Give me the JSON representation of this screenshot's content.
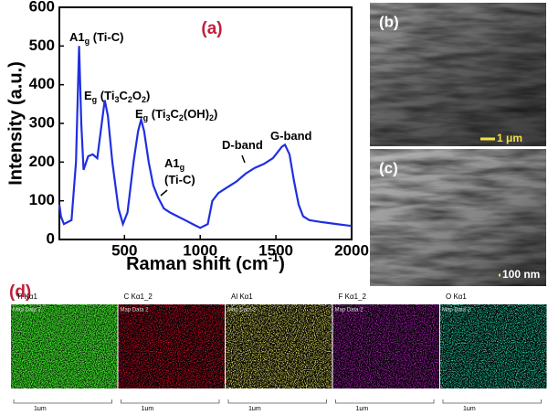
{
  "chart_data": {
    "type": "line",
    "panel": "(a)",
    "xlabel": [
      "Raman shift (cm",
      "-1",
      ")"
    ],
    "ylabel": "Intensity (a.u.)",
    "xlim": [
      70,
      2000
    ],
    "ylim": [
      0,
      600
    ],
    "xticks": [
      500,
      1000,
      1500,
      2000
    ],
    "yticks": [
      0,
      100,
      200,
      300,
      400,
      500,
      600
    ],
    "series": [
      {
        "color": "#1f2fe0",
        "x": [
          70,
          80,
          100,
          150,
          180,
          200,
          215,
          230,
          260,
          290,
          320,
          350,
          370,
          390,
          420,
          460,
          490,
          520,
          560,
          590,
          610,
          630,
          660,
          690,
          720,
          760,
          800,
          850,
          900,
          950,
          1000,
          1050,
          1080,
          1120,
          1180,
          1240,
          1300,
          1360,
          1420,
          1480,
          1540,
          1560,
          1590,
          1620,
          1650,
          1680,
          1720,
          1800,
          1900,
          2000
        ],
        "values": [
          90,
          60,
          40,
          50,
          200,
          500,
          300,
          180,
          215,
          220,
          210,
          300,
          360,
          320,
          200,
          80,
          40,
          70,
          200,
          280,
          310,
          280,
          200,
          140,
          110,
          80,
          70,
          60,
          50,
          40,
          30,
          40,
          100,
          120,
          135,
          150,
          170,
          185,
          195,
          210,
          240,
          245,
          220,
          150,
          90,
          60,
          50,
          45,
          40,
          35
        ]
      }
    ],
    "annotations": [
      {
        "parts": [
          "A1",
          "g",
          " (Ti-C)"
        ]
      },
      {
        "parts": [
          "E",
          "g",
          " (Ti",
          "3",
          "C",
          "2",
          "O",
          "2",
          ")"
        ]
      },
      {
        "parts": [
          "E",
          "g",
          " (Ti",
          "3",
          "C",
          "2",
          "(OH)",
          "2",
          ")"
        ]
      },
      {
        "parts": [
          "A1",
          "g"
        ]
      },
      {
        "parts": [
          "(Ti-C)"
        ]
      },
      {
        "parts": [
          "D-band"
        ]
      },
      {
        "parts": [
          "G-band"
        ]
      }
    ]
  },
  "sem": [
    {
      "panel": "(b)",
      "scale": "1 μm"
    },
    {
      "panel": "(c)",
      "scale": "100 nm"
    }
  ],
  "maps": {
    "panel": "(d)",
    "subtitle": "Map Data 2",
    "scale": "1μm",
    "items": [
      {
        "label": "Ti Kα1",
        "color": "#3ee02a"
      },
      {
        "label": "C Kα1_2",
        "color": "#d0102c"
      },
      {
        "label": "Al Kα1",
        "color": "#e0dc60"
      },
      {
        "label": "F Kα1_2",
        "color": "#b020b8"
      },
      {
        "label": "O Kα1",
        "color": "#28d8b0"
      }
    ]
  }
}
